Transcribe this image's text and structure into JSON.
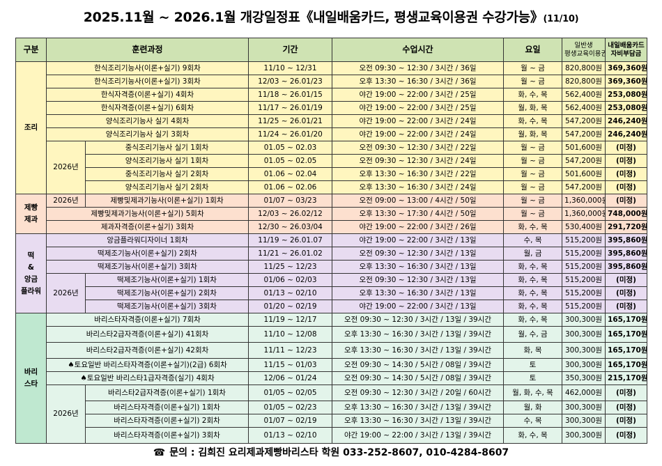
{
  "title": {
    "main": "2025.11월 ~ 2026.1월 개강일정표《내일배움카드, 평생교육이용권 수강가능》",
    "date": "(11/10)"
  },
  "header": {
    "gubun": "구분",
    "course": "훈련과정",
    "period": "기간",
    "time": "수업시간",
    "days": "요일",
    "fee_line1": "일반생",
    "fee_line2": "평생교육이용권",
    "self_line1": "내일배움카드",
    "self_line2": "자비부담금"
  },
  "categories": {
    "jori": "조리",
    "jebbang_1": "제빵",
    "jebbang_2": "제과",
    "ddeok_1": "떡",
    "ddeok_2": "&",
    "ddeok_3": "앙금",
    "ddeok_4": "플라워",
    "barista_1": "바리",
    "barista_2": "스타"
  },
  "year_label": "2026년",
  "rows": [
    {
      "course": "한식조리기능사(이론+실기) 9회차",
      "period": "11/10 ~ 12/31",
      "time": "오전 09:30 ~ 12:30 / 3시간 / 36일",
      "days": "월 ~ 금",
      "fee": "820,800원",
      "self": "369,360원"
    },
    {
      "course": "한식조리기능사(이론+실기) 3회차",
      "period": "12/03 ~ 26.01/23",
      "time": "오후 13:30 ~ 16:30 / 3시간 / 36일",
      "days": "월 ~ 금",
      "fee": "820,800원",
      "self": "369,360원"
    },
    {
      "course": "한식자격증(이론+실기) 4회차",
      "period": "11/18 ~ 26.01/15",
      "time": "야간 19:00 ~ 22:00 / 3시간 / 25일",
      "days": "화, 수, 목",
      "fee": "562,400원",
      "self": "253,080원"
    },
    {
      "course": "한식자격증(이론+실기) 6회차",
      "period": "11/17 ~ 26.01/19",
      "time": "야간 19:00 ~ 22:00 / 3시간 / 25일",
      "days": "월, 화, 목",
      "fee": "562,400원",
      "self": "253,080원"
    },
    {
      "course": "양식조리기능사 실기 4회차",
      "period": "11/25 ~ 26.01/21",
      "time": "야간 19:00 ~ 22:00 / 3시간 / 24일",
      "days": "화, 수, 목",
      "fee": "547,200원",
      "self": "246,240원"
    },
    {
      "course": "양식조리기능사 실기 3회차",
      "period": "11/24 ~ 26.01/20",
      "time": "야간 19:00 ~ 22:00 / 3시간 / 24일",
      "days": "월, 화, 목",
      "fee": "547,200원",
      "self": "246,240원"
    },
    {
      "course": "중식조리기능사 실기 1회차",
      "period": "01.05 ~ 02.03",
      "time": "오전 09:30 ~ 12:30 / 3시간 / 22일",
      "days": "월 ~ 금",
      "fee": "501,600원",
      "self": "(미정)"
    },
    {
      "course": "양식조리기능사 실기 1회차",
      "period": "01.05 ~ 02.05",
      "time": "오전 09:30 ~ 12:30 / 3시간 / 24일",
      "days": "월 ~ 금",
      "fee": "547,200원",
      "self": "(미정)"
    },
    {
      "course": "중식조리기능사 실기 2회차",
      "period": "01.06 ~ 02.04",
      "time": "오후 13:30 ~ 16:30 / 3시간 / 22일",
      "days": "월 ~ 금",
      "fee": "501,600원",
      "self": "(미정)"
    },
    {
      "course": "양식조리기능사 실기 2회차",
      "period": "01.06 ~ 02.06",
      "time": "오후 13:30 ~ 16:30 / 3시간 / 24일",
      "days": "월 ~ 금",
      "fee": "547,200원",
      "self": "(미정)"
    },
    {
      "course": "제빵및제과기능사(이론+실기) 1회차",
      "period": "01/07 ~ 03/23",
      "time": "오전 09:00 ~ 13:00 / 4시간 / 50일",
      "days": "월 ~ 금",
      "fee": "1,360,000원",
      "self": "(미정)"
    },
    {
      "course": "제빵및제과기능사(이론+실기) 5회차",
      "period": "12/03 ~ 26.02/12",
      "time": "오후 13:30 ~ 17:30 / 4시간 / 50일",
      "days": "월 ~ 금",
      "fee": "1,360,000원",
      "self": "748,000원"
    },
    {
      "course": "제과자격증(이론+실기) 3회차",
      "period": "12/30 ~ 26.03/04",
      "time": "야간 19:00 ~ 22:00 / 3시간 / 26일",
      "days": "화, 수, 목",
      "fee": "530,400원",
      "self": "291,720원"
    },
    {
      "course": "앙금플라워디자이너 1회차",
      "period": "11/19 ~ 26.01.07",
      "time": "야간 19:00 ~ 22:00 / 3시간 / 13일",
      "days": "수, 목",
      "fee": "515,200원",
      "self": "395,860원"
    },
    {
      "course": "떡제조기능사(이론+실기) 2회차",
      "period": "11/21 ~ 26.01.02",
      "time": "오전 09:30 ~ 12:30 / 3시간 / 13일",
      "days": "월, 금",
      "fee": "515,200원",
      "self": "395,860원"
    },
    {
      "course": "떡제조기능사(이론+실기) 3회차",
      "period": "11/25 ~ 12/23",
      "time": "오후 13:30 ~ 16:30 / 3시간 / 13일",
      "days": "화, 수, 목",
      "fee": "515,200원",
      "self": "395,860원"
    },
    {
      "course": "떡제조기능사(이론+실기) 1회차",
      "period": "01/06 ~ 02/03",
      "time": "오전 09:30 ~ 12:30 / 3시간 / 13일",
      "days": "화, 수, 목",
      "fee": "515,200원",
      "self": "(미정)"
    },
    {
      "course": "떡제조기능사(이론+실기) 2회차",
      "period": "01/13 ~ 02/10",
      "time": "오후 13:30 ~ 16:30 / 3시간 / 13일",
      "days": "화, 수, 목",
      "fee": "515,200원",
      "self": "(미정)"
    },
    {
      "course": "떡제조기능사(이론+실기) 3회차",
      "period": "01/20 ~ 02/19",
      "time": "야간 19:00 ~ 22:00 / 3시간 / 13일",
      "days": "화, 수, 목",
      "fee": "515,200원",
      "self": "(미정)"
    },
    {
      "course": "바리스타자격증(이론+실기) 7회차",
      "period": "11/19 ~ 12/17",
      "time": "오전 09:30 ~ 12:30 / 3시간 / 13일 / 39시간",
      "days": "화, 수, 목",
      "fee": "300,300원",
      "self": "165,170원"
    },
    {
      "course": "바리스타2급자격증(이론+실기) 41회차",
      "period": "11/10 ~ 12/08",
      "time": "오후 13:30 ~ 16:30 / 3시간 / 13일 / 39시간",
      "days": "월, 수, 금",
      "fee": "300,300원",
      "self": "165,170원"
    },
    {
      "course": "바리스타2급자격증(이론+실기) 42회차",
      "period": "11/11 ~ 12/23",
      "time": "오후 13:30 ~ 16:30 / 3시간 / 13일 / 39시간",
      "days": "화, 목",
      "fee": "300,300원",
      "self": "165,170원"
    },
    {
      "course": "♠토요일반 바리스타자격증(이론+실기)(2급) 6회차",
      "period": "11/15 ~ 01/03",
      "time": "오전 09:30 ~ 14:30 / 5시간 / 08일 / 39시간",
      "days": "토",
      "fee": "300,300원",
      "self": "165,170원"
    },
    {
      "course": "♠토요일반 바리스타1급자격증(실기) 4회차",
      "period": "12/06 ~ 01/24",
      "time": "오전 09:30 ~ 14:30 / 5시간 / 08일 / 39시간",
      "days": "토",
      "fee": "350,300원",
      "self": "215,170원"
    },
    {
      "course": "바리스타2급자격증(이론+실기) 1회차",
      "period": "01/05 ~ 02/05",
      "time": "오전 09:30 ~ 12:30 / 3시간 / 20일 / 60시간",
      "days": "월, 화, 수, 목",
      "fee": "462,000원",
      "self": "(미정)"
    },
    {
      "course": "바리스타자격증(이론+실기) 1회차",
      "period": "01/05 ~ 02/23",
      "time": "오후 13:30 ~ 16:30 / 3시간 / 13일 / 39시간",
      "days": "월, 화",
      "fee": "300,300원",
      "self": "(미정)"
    },
    {
      "course": "바리스타자격증(이론+실기) 2회차",
      "period": "01/07 ~ 02/19",
      "time": "오후 13:30 ~ 16:30 / 3시간 / 13일 / 39시간",
      "days": "수, 목",
      "fee": "300,300원",
      "self": "(미정)"
    },
    {
      "course": "바리스타자격증(이론+실기) 3회차",
      "period": "01/13 ~ 02/10",
      "time": "야간 19:00 ~ 22:00 / 3시간 / 13일 / 39시간",
      "days": "화, 수, 목",
      "fee": "300,300원",
      "self": "(미정)"
    }
  ],
  "footer": {
    "icon": "☎",
    "text": "문의 : 김희진 요리제과제빵바리스타 학원 033-252-8607, 010-4284-8607"
  }
}
